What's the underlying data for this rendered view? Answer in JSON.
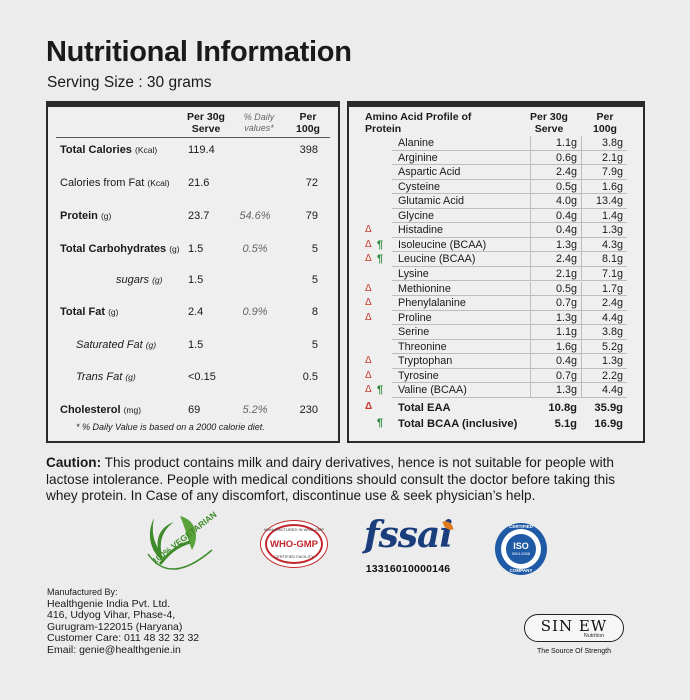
{
  "title": "Nutritional Information",
  "serving_size": "Serving Size : 30 grams",
  "nutrition": {
    "headers": {
      "per_serve": "Per 30g Serve",
      "daily_value": "% Daily values*",
      "per_100g": "Per 100g"
    },
    "rows": [
      {
        "label": "Total Calories",
        "unit": "(Kcal)",
        "per_serve": "119.4",
        "daily_value": "",
        "per_100g": "398"
      },
      {
        "label": "Calories from Fat",
        "unit": "(Kcal)",
        "per_serve": "21.6",
        "daily_value": "",
        "per_100g": "72"
      },
      {
        "label": "Protein",
        "unit": "(g)",
        "per_serve": "23.7",
        "daily_value": "54.6%",
        "per_100g": "79"
      },
      {
        "label": "Total Carbohydrates",
        "unit": "(g)",
        "per_serve": "1.5",
        "daily_value": "0.5%",
        "per_100g": "5"
      },
      {
        "label": "sugars",
        "unit": "(g)",
        "per_serve": "1.5",
        "daily_value": "",
        "per_100g": "5"
      },
      {
        "label": "Total Fat",
        "unit": "(g)",
        "per_serve": "2.4",
        "daily_value": "0.9%",
        "per_100g": "8"
      },
      {
        "label": "Saturated Fat",
        "unit": "(g)",
        "per_serve": "1.5",
        "daily_value": "",
        "per_100g": "5"
      },
      {
        "label": "Trans Fat",
        "unit": "(g)",
        "per_serve": "<0.15",
        "daily_value": "",
        "per_100g": "0.5"
      },
      {
        "label": "Cholesterol",
        "unit": "(mg)",
        "per_serve": "69",
        "daily_value": "5.2%",
        "per_100g": "230"
      }
    ],
    "footnote": "* % Daily Value is based on a 2000 calorie diet."
  },
  "amino": {
    "headers": {
      "profile": "Amino Acid Profile of Protein",
      "per_serve": "Per 30g Serve",
      "per_100g": "Per 100g"
    },
    "rows": [
      {
        "name": "Alanine",
        "delta": "",
        "bcaa": "",
        "per_serve": "1.1g",
        "per_100g": "3.8g"
      },
      {
        "name": "Arginine",
        "delta": "",
        "bcaa": "",
        "per_serve": "0.6g",
        "per_100g": "2.1g"
      },
      {
        "name": "Aspartic Acid",
        "delta": "",
        "bcaa": "",
        "per_serve": "2.4g",
        "per_100g": "7.9g"
      },
      {
        "name": "Cysteine",
        "delta": "",
        "bcaa": "",
        "per_serve": "0.5g",
        "per_100g": "1.6g"
      },
      {
        "name": "Glutamic Acid",
        "delta": "",
        "bcaa": "",
        "per_serve": "4.0g",
        "per_100g": "13.4g"
      },
      {
        "name": "Glycine",
        "delta": "",
        "bcaa": "",
        "per_serve": "0.4g",
        "per_100g": "1.4g"
      },
      {
        "name": "Histadine",
        "delta": "Δ",
        "bcaa": "",
        "per_serve": "0.4g",
        "per_100g": "1.3g"
      },
      {
        "name": "Isoleucine (BCAA)",
        "delta": "Δ",
        "bcaa": "¶",
        "per_serve": "1.3g",
        "per_100g": "4.3g"
      },
      {
        "name": "Leucine (BCAA)",
        "delta": "Δ",
        "bcaa": "¶",
        "per_serve": "2.4g",
        "per_100g": "8.1g"
      },
      {
        "name": "Lysine",
        "delta": "",
        "bcaa": "",
        "per_serve": "2.1g",
        "per_100g": "7.1g"
      },
      {
        "name": "Methionine",
        "delta": "Δ",
        "bcaa": "",
        "per_serve": "0.5g",
        "per_100g": "1.7g"
      },
      {
        "name": "Phenylalanine",
        "delta": "Δ",
        "bcaa": "",
        "per_serve": "0.7g",
        "per_100g": "2.4g"
      },
      {
        "name": "Proline",
        "delta": "Δ",
        "bcaa": "",
        "per_serve": "1.3g",
        "per_100g": "4.4g"
      },
      {
        "name": "Serine",
        "delta": "",
        "bcaa": "",
        "per_serve": "1.1g",
        "per_100g": "3.8g"
      },
      {
        "name": "Threonine",
        "delta": "",
        "bcaa": "",
        "per_serve": "1.6g",
        "per_100g": "5.2g"
      },
      {
        "name": "Tryptophan",
        "delta": "Δ",
        "bcaa": "",
        "per_serve": "0.4g",
        "per_100g": "1.3g"
      },
      {
        "name": "Tyrosine",
        "delta": "Δ",
        "bcaa": "",
        "per_serve": "0.7g",
        "per_100g": "2.2g"
      },
      {
        "name": "Valine (BCAA)",
        "delta": "Δ",
        "bcaa": "¶",
        "per_serve": "1.3g",
        "per_100g": "4.4g"
      }
    ],
    "totals": [
      {
        "name": "Total EAA",
        "delta": "Δ",
        "bcaa": "",
        "per_serve": "10.8g",
        "per_100g": "35.9g"
      },
      {
        "name": "Total BCAA (inclusive)",
        "delta": "",
        "bcaa": "¶",
        "per_serve": "5.1g",
        "per_100g": "16.9g"
      }
    ]
  },
  "caution": {
    "lead": "Caution:",
    "text": " This product contains milk and dairy derivatives, hence is not suitable for people with lactose intolerance. People with medical conditions should consult the doctor before taking this whey protein. In Case of any discomfort, discontinue use & seek physician’s help."
  },
  "logos": {
    "veg": {
      "text": "100% VEGETARIAN",
      "color": "#3f8a2a"
    },
    "who": {
      "text": "WHO-GMP",
      "top_text": "MANUFACTURED IN WHO-GMP",
      "bottom_text": "CERTIFIED FACILITY",
      "color": "#c4262e"
    },
    "fssai": {
      "text": "fssai",
      "number": "13316010000146",
      "color": "#1a3d7c",
      "accent": "#e07a1f"
    },
    "iso": {
      "top_text": "CERTIFIED",
      "text": "ISO",
      "sub": "9001:2008",
      "bottom_text": "COMPANY",
      "color": "#1f5aa6"
    }
  },
  "manufacturer": {
    "heading": "Manufactured By:",
    "lines": [
      "Healthgenie India Pvt. Ltd.",
      "416, Udyog Vihar, Phase-4,",
      "Gurugram-122015 (Haryana)",
      "Customer Care: 011 48 32 32 32",
      "Email: genie@healthgenie.in"
    ]
  },
  "brand": {
    "name": "SIN EW",
    "sub": "Nutrition",
    "tagline": "The Source Of Strength"
  }
}
